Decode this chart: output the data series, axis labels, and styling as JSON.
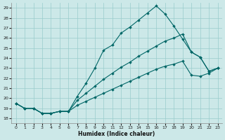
{
  "xlabel": "Humidex (Indice chaleur)",
  "bg_color": "#cce8e8",
  "grid_color": "#99cccc",
  "line_color": "#006666",
  "xlim": [
    -0.5,
    23.5
  ],
  "ylim": [
    17.5,
    29.5
  ],
  "xticks": [
    0,
    1,
    2,
    3,
    4,
    5,
    6,
    7,
    8,
    9,
    10,
    11,
    12,
    13,
    14,
    15,
    16,
    17,
    18,
    19,
    20,
    21,
    22,
    23
  ],
  "yticks": [
    18,
    19,
    20,
    21,
    22,
    23,
    24,
    25,
    26,
    27,
    28,
    29
  ],
  "line1_x": [
    0,
    1,
    2,
    3,
    4,
    5,
    6,
    7,
    8,
    9,
    10,
    11,
    12,
    13,
    14,
    15,
    16,
    17,
    18,
    19,
    20,
    21,
    22,
    23
  ],
  "line1_y": [
    19.5,
    19.0,
    19.0,
    18.5,
    18.5,
    18.7,
    18.7,
    20.2,
    21.5,
    23.0,
    24.8,
    25.3,
    26.5,
    27.1,
    27.8,
    28.5,
    29.2,
    28.4,
    27.2,
    25.9,
    24.6,
    24.1,
    22.7,
    23.0
  ],
  "line2_x": [
    0,
    1,
    2,
    3,
    4,
    5,
    6,
    7,
    8,
    9,
    10,
    11,
    12,
    13,
    14,
    15,
    16,
    17,
    18,
    19,
    20,
    21,
    22,
    23
  ],
  "line2_y": [
    19.5,
    19.0,
    19.0,
    18.5,
    18.5,
    18.7,
    18.7,
    19.8,
    20.5,
    21.2,
    21.9,
    22.5,
    23.1,
    23.6,
    24.2,
    24.7,
    25.2,
    25.7,
    26.0,
    26.4,
    24.6,
    24.1,
    22.7,
    23.0
  ],
  "line3_x": [
    0,
    1,
    2,
    3,
    4,
    5,
    6,
    7,
    8,
    9,
    10,
    11,
    12,
    13,
    14,
    15,
    16,
    17,
    18,
    19,
    20,
    21,
    22,
    23
  ],
  "line3_y": [
    19.5,
    19.0,
    19.0,
    18.5,
    18.5,
    18.7,
    18.7,
    19.3,
    19.7,
    20.1,
    20.5,
    20.9,
    21.3,
    21.7,
    22.1,
    22.5,
    22.9,
    23.2,
    23.4,
    23.7,
    22.3,
    22.2,
    22.5,
    23.0
  ]
}
